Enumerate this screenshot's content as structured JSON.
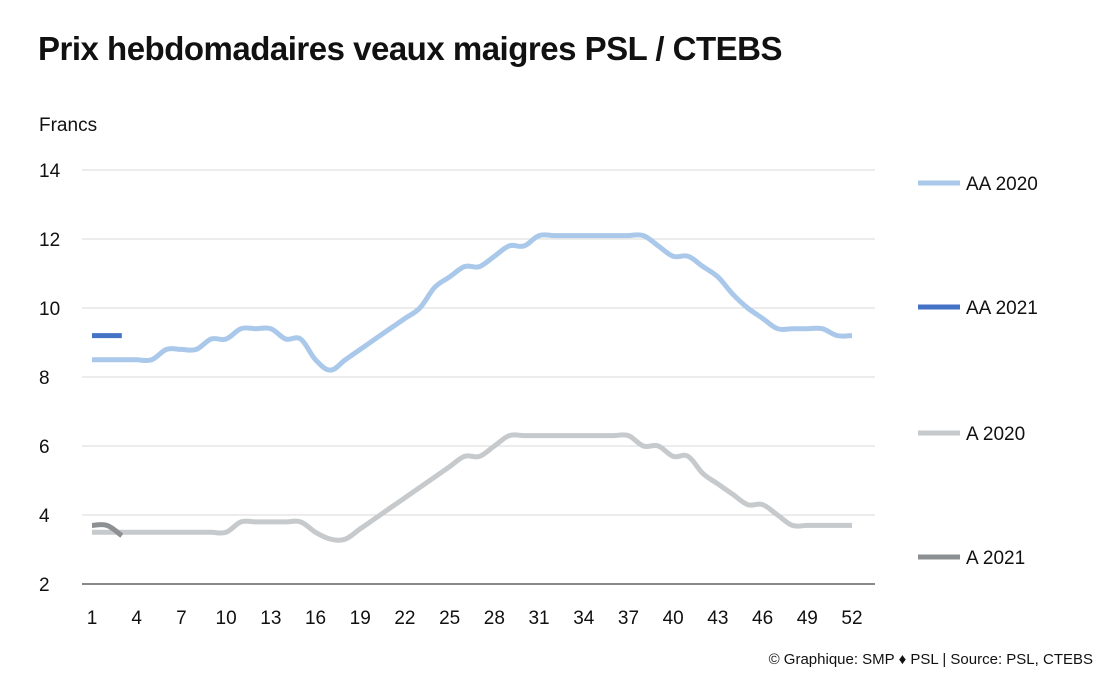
{
  "title": "Prix hebdomadaires veaux maigres PSL / CTEBS",
  "footer": "© Graphique: SMP ♦ PSL | Source: PSL, CTEBS",
  "chart_data": {
    "type": "line",
    "title": "Prix hebdomadaires veaux maigres PSL / CTEBS",
    "ylabel": "Francs",
    "xlabel": "",
    "ylim": [
      2,
      14
    ],
    "yticks": [
      2,
      4,
      6,
      8,
      10,
      12,
      14
    ],
    "xlim": [
      1,
      52
    ],
    "xticks": [
      1,
      4,
      7,
      10,
      13,
      16,
      19,
      22,
      25,
      28,
      31,
      34,
      37,
      40,
      43,
      46,
      49,
      52
    ],
    "grid": true,
    "legend_position": "right",
    "series": [
      {
        "name": "AA 2020",
        "color": "#aac8ea",
        "x": [
          1,
          2,
          3,
          4,
          5,
          6,
          7,
          8,
          9,
          10,
          11,
          12,
          13,
          14,
          15,
          16,
          17,
          18,
          19,
          20,
          21,
          22,
          23,
          24,
          25,
          26,
          27,
          28,
          29,
          30,
          31,
          32,
          33,
          34,
          35,
          36,
          37,
          38,
          39,
          40,
          41,
          42,
          43,
          44,
          45,
          46,
          47,
          48,
          49,
          50,
          51,
          52
        ],
        "values": [
          8.5,
          8.5,
          8.5,
          8.5,
          8.5,
          8.8,
          8.8,
          8.8,
          9.1,
          9.1,
          9.4,
          9.4,
          9.4,
          9.1,
          9.1,
          8.5,
          8.2,
          8.5,
          8.8,
          9.1,
          9.4,
          9.7,
          10.0,
          10.6,
          10.9,
          11.2,
          11.2,
          11.5,
          11.8,
          11.8,
          12.1,
          12.1,
          12.1,
          12.1,
          12.1,
          12.1,
          12.1,
          12.1,
          11.8,
          11.5,
          11.5,
          11.2,
          10.9,
          10.4,
          10.0,
          9.7,
          9.4,
          9.4,
          9.4,
          9.4,
          9.2,
          9.2
        ]
      },
      {
        "name": "AA 2021",
        "color": "#4472c4",
        "x": [
          1,
          2,
          3
        ],
        "values": [
          9.2,
          9.2,
          9.2
        ]
      },
      {
        "name": "A 2020",
        "color": "#c6cacc",
        "x": [
          1,
          2,
          3,
          4,
          5,
          6,
          7,
          8,
          9,
          10,
          11,
          12,
          13,
          14,
          15,
          16,
          17,
          18,
          19,
          20,
          21,
          22,
          23,
          24,
          25,
          26,
          27,
          28,
          29,
          30,
          31,
          32,
          33,
          34,
          35,
          36,
          37,
          38,
          39,
          40,
          41,
          42,
          43,
          44,
          45,
          46,
          47,
          48,
          49,
          50,
          51,
          52
        ],
        "values": [
          3.5,
          3.5,
          3.5,
          3.5,
          3.5,
          3.5,
          3.5,
          3.5,
          3.5,
          3.5,
          3.8,
          3.8,
          3.8,
          3.8,
          3.8,
          3.5,
          3.3,
          3.3,
          3.6,
          3.9,
          4.2,
          4.5,
          4.8,
          5.1,
          5.4,
          5.7,
          5.7,
          6.0,
          6.3,
          6.3,
          6.3,
          6.3,
          6.3,
          6.3,
          6.3,
          6.3,
          6.3,
          6.0,
          6.0,
          5.7,
          5.7,
          5.2,
          4.9,
          4.6,
          4.3,
          4.3,
          4.0,
          3.7,
          3.7,
          3.7,
          3.7,
          3.7
        ]
      },
      {
        "name": "A 2021",
        "color": "#8c9092",
        "x": [
          1,
          2,
          3
        ],
        "values": [
          3.7,
          3.7,
          3.4
        ]
      }
    ]
  }
}
